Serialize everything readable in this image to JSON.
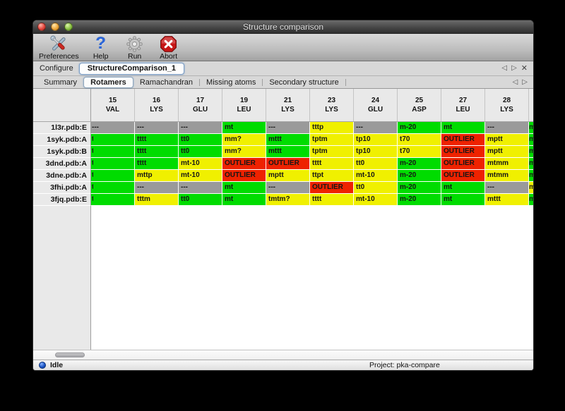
{
  "window": {
    "title": "Structure comparison"
  },
  "toolbar": {
    "items": [
      {
        "label": "Preferences",
        "icon": "crossed-tools"
      },
      {
        "label": "Help",
        "icon": "question-mark",
        "glyph": "?"
      },
      {
        "label": "Run",
        "icon": "gear"
      },
      {
        "label": "Abort",
        "icon": "stop-x"
      }
    ]
  },
  "configure": {
    "label": "Configure",
    "tab": "StructureComparison_1"
  },
  "nav": {
    "prev": "◁",
    "next": "▷",
    "close": "✕"
  },
  "tabs": {
    "selected": "Rotamers",
    "items": [
      {
        "label": "Summary"
      },
      {
        "label": "Rotamers"
      },
      {
        "label": "Ramachandran"
      },
      {
        "label": "Missing atoms"
      },
      {
        "label": "Secondary structure"
      }
    ]
  },
  "colors": {
    "green": "#00dc00",
    "yellow": "#f0f000",
    "red": "#ee2200",
    "gray": "#9a9a9a"
  },
  "table": {
    "columns": [
      {
        "num": "15",
        "res": "VAL"
      },
      {
        "num": "16",
        "res": "LYS"
      },
      {
        "num": "17",
        "res": "GLU"
      },
      {
        "num": "19",
        "res": "LEU"
      },
      {
        "num": "21",
        "res": "LYS"
      },
      {
        "num": "23",
        "res": "LYS"
      },
      {
        "num": "24",
        "res": "GLU"
      },
      {
        "num": "25",
        "res": "ASP"
      },
      {
        "num": "27",
        "res": "LEU"
      },
      {
        "num": "28",
        "res": "LYS"
      }
    ],
    "rows": [
      {
        "label": "1l3r.pdb:E",
        "sliver": "green",
        "cells": [
          {
            "v": "---",
            "c": "gray"
          },
          {
            "v": "---",
            "c": "gray"
          },
          {
            "v": "---",
            "c": "gray"
          },
          {
            "v": "mt",
            "c": "green"
          },
          {
            "v": "---",
            "c": "gray"
          },
          {
            "v": "tttp",
            "c": "yellow"
          },
          {
            "v": "---",
            "c": "gray"
          },
          {
            "v": "m-20",
            "c": "green"
          },
          {
            "v": "mt",
            "c": "green"
          },
          {
            "v": "---",
            "c": "gray"
          }
        ]
      },
      {
        "label": "1syk.pdb:A",
        "sliver": "green",
        "cells": [
          {
            "v": "t",
            "c": "green",
            "clip": true
          },
          {
            "v": "tttt",
            "c": "green"
          },
          {
            "v": "tt0",
            "c": "green"
          },
          {
            "v": "mm?",
            "c": "yellow"
          },
          {
            "v": "mttt",
            "c": "green"
          },
          {
            "v": "tptm",
            "c": "yellow"
          },
          {
            "v": "tp10",
            "c": "yellow"
          },
          {
            "v": "t70",
            "c": "yellow"
          },
          {
            "v": "OUTLIER",
            "c": "red"
          },
          {
            "v": "mptt",
            "c": "yellow"
          }
        ]
      },
      {
        "label": "1syk.pdb:B",
        "sliver": "green",
        "cells": [
          {
            "v": "t",
            "c": "green",
            "clip": true
          },
          {
            "v": "tttt",
            "c": "green"
          },
          {
            "v": "tt0",
            "c": "green"
          },
          {
            "v": "mm?",
            "c": "yellow"
          },
          {
            "v": "mttt",
            "c": "green"
          },
          {
            "v": "tptm",
            "c": "yellow"
          },
          {
            "v": "tp10",
            "c": "yellow"
          },
          {
            "v": "t70",
            "c": "yellow"
          },
          {
            "v": "OUTLIER",
            "c": "red"
          },
          {
            "v": "mptt",
            "c": "yellow"
          }
        ]
      },
      {
        "label": "3dnd.pdb:A",
        "sliver": "green",
        "cells": [
          {
            "v": "t",
            "c": "green",
            "clip": true
          },
          {
            "v": "tttt",
            "c": "green"
          },
          {
            "v": "mt-10",
            "c": "yellow"
          },
          {
            "v": "OUTLIER",
            "c": "red"
          },
          {
            "v": "OUTLIER",
            "c": "red"
          },
          {
            "v": "tttt",
            "c": "yellow"
          },
          {
            "v": "tt0",
            "c": "yellow"
          },
          {
            "v": "m-20",
            "c": "green"
          },
          {
            "v": "OUTLIER",
            "c": "red"
          },
          {
            "v": "mtmm",
            "c": "yellow"
          }
        ]
      },
      {
        "label": "3dne.pdb:A",
        "sliver": "green",
        "cells": [
          {
            "v": "t",
            "c": "green",
            "clip": true
          },
          {
            "v": "mttp",
            "c": "yellow"
          },
          {
            "v": "mt-10",
            "c": "yellow"
          },
          {
            "v": "OUTLIER",
            "c": "red"
          },
          {
            "v": "mptt",
            "c": "yellow"
          },
          {
            "v": "ttpt",
            "c": "yellow"
          },
          {
            "v": "mt-10",
            "c": "yellow"
          },
          {
            "v": "m-20",
            "c": "green"
          },
          {
            "v": "OUTLIER",
            "c": "red"
          },
          {
            "v": "mtmm",
            "c": "yellow"
          }
        ]
      },
      {
        "label": "3fhi.pdb:A",
        "sliver": "yellow",
        "cells": [
          {
            "v": "t",
            "c": "green",
            "clip": true
          },
          {
            "v": "---",
            "c": "gray"
          },
          {
            "v": "---",
            "c": "gray"
          },
          {
            "v": "mt",
            "c": "green"
          },
          {
            "v": "---",
            "c": "gray"
          },
          {
            "v": "OUTLIER",
            "c": "red"
          },
          {
            "v": "tt0",
            "c": "yellow"
          },
          {
            "v": "m-20",
            "c": "green"
          },
          {
            "v": "mt",
            "c": "green"
          },
          {
            "v": "---",
            "c": "gray"
          }
        ]
      },
      {
        "label": "3fjq.pdb:E",
        "sliver": "green",
        "cells": [
          {
            "v": "t",
            "c": "green",
            "clip": true
          },
          {
            "v": "tttm",
            "c": "yellow"
          },
          {
            "v": "tt0",
            "c": "green"
          },
          {
            "v": "mt",
            "c": "green"
          },
          {
            "v": "tmtm?",
            "c": "yellow"
          },
          {
            "v": "tttt",
            "c": "yellow"
          },
          {
            "v": "mt-10",
            "c": "yellow"
          },
          {
            "v": "m-20",
            "c": "green"
          },
          {
            "v": "mt",
            "c": "green"
          },
          {
            "v": "mttt",
            "c": "yellow"
          }
        ]
      }
    ]
  },
  "statusbar": {
    "status": "Idle",
    "project": "Project: pka-compare"
  }
}
